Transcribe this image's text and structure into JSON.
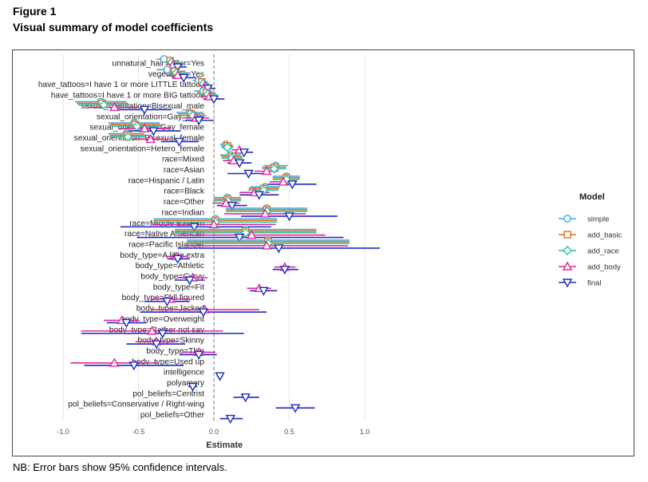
{
  "figure": {
    "number": "Figure 1",
    "title": "Visual summary of model coefficients"
  },
  "note": "NB: Error bars show 95% confidence intervals.",
  "colors": {
    "simple": "#3fa9dc",
    "add_basic": "#e36c19",
    "add_race": "#1ec5a0",
    "add_body": "#e6259a",
    "final": "#1c2bc4"
  },
  "chart_data": {
    "type": "scatter",
    "title": "",
    "xlabel": "Estimate",
    "ylabel": "",
    "xlim": [
      -1.0,
      1.0
    ],
    "xticks": [
      "-1.0",
      "-0.5",
      "0.0",
      "0.5",
      "1.0"
    ],
    "xtick_values": [
      -1.0,
      -0.5,
      0.0,
      0.5,
      1.0
    ],
    "grid": true,
    "reference_line": 0,
    "legend": {
      "title": "Model",
      "position": "right"
    },
    "series_names": [
      "simple",
      "add_basic",
      "add_race",
      "add_body",
      "final"
    ],
    "terms": [
      {
        "label": "unnatural_hair_color=Yes",
        "est": {
          "simple": [
            -0.33,
            -0.38,
            -0.28
          ],
          "add_basic": [
            -0.29,
            -0.34,
            -0.24
          ],
          "add_race": [
            -0.28,
            -0.33,
            -0.23
          ],
          "add_body": [
            -0.27,
            -0.32,
            -0.22
          ],
          "final": [
            -0.24,
            -0.29,
            -0.18
          ]
        }
      },
      {
        "label": "vegetarian=Yes",
        "est": {
          "simple": [
            -0.31,
            -0.38,
            -0.24
          ],
          "add_basic": [
            -0.26,
            -0.33,
            -0.19
          ],
          "add_race": [
            -0.25,
            -0.32,
            -0.18
          ],
          "add_body": [
            -0.24,
            -0.31,
            -0.17
          ],
          "final": [
            -0.2,
            -0.28,
            -0.12
          ]
        }
      },
      {
        "label": "have_tattoos=I have 1 or more LITTLE tattoos",
        "est": {
          "simple": [
            -0.1,
            -0.14,
            -0.06
          ],
          "add_basic": [
            -0.08,
            -0.12,
            -0.04
          ],
          "add_race": [
            -0.07,
            -0.11,
            -0.03
          ],
          "add_body": [
            -0.06,
            -0.1,
            -0.02
          ],
          "final": [
            -0.04,
            -0.09,
            0.01
          ]
        }
      },
      {
        "label": "have_tattoos=I have 1 or more BIG tattoos",
        "est": {
          "simple": [
            -0.07,
            -0.13,
            -0.01
          ],
          "add_basic": [
            -0.05,
            -0.11,
            0.01
          ],
          "add_race": [
            -0.04,
            -0.1,
            0.02
          ],
          "add_body": [
            -0.03,
            -0.09,
            0.03
          ],
          "final": [
            0.0,
            -0.07,
            0.07
          ]
        }
      },
      {
        "label": "sexual_orientation=Bisexual_male",
        "est": {
          "simple": [
            -0.75,
            -0.92,
            -0.58
          ],
          "add_basic": [
            -0.74,
            -0.91,
            -0.57
          ],
          "add_race": [
            -0.73,
            -0.9,
            -0.56
          ],
          "add_body": [
            -0.66,
            -0.84,
            -0.5
          ],
          "final": [
            -0.46,
            -0.64,
            -0.28
          ]
        }
      },
      {
        "label": "sexual_orientation=Gay_male",
        "est": {
          "simple": [
            -0.16,
            -0.25,
            -0.07
          ],
          "add_basic": [
            -0.15,
            -0.24,
            -0.06
          ],
          "add_race": [
            -0.14,
            -0.23,
            -0.05
          ],
          "add_body": [
            -0.12,
            -0.21,
            -0.03
          ],
          "final": [
            -0.1,
            -0.19,
            0.0
          ]
        }
      },
      {
        "label": "sexual_orientation=Gay_female",
        "est": {
          "simple": [
            -0.53,
            -0.7,
            -0.36
          ],
          "add_basic": [
            -0.52,
            -0.69,
            -0.35
          ],
          "add_race": [
            -0.51,
            -0.68,
            -0.34
          ],
          "add_body": [
            -0.46,
            -0.63,
            -0.29
          ],
          "final": [
            -0.4,
            -0.57,
            -0.22
          ]
        }
      },
      {
        "label": "sexual_orientation=Bisexual_female",
        "est": {
          "simple": [
            -0.58,
            -0.7,
            -0.46
          ],
          "add_basic": [
            -0.57,
            -0.69,
            -0.45
          ],
          "add_race": [
            -0.57,
            -0.69,
            -0.45
          ],
          "add_body": [
            -0.42,
            -0.54,
            -0.3
          ],
          "final": [
            -0.23,
            -0.35,
            -0.1
          ]
        }
      },
      {
        "label": "sexual_orientation=Hetero_female",
        "est": {
          "simple": [
            0.08,
            0.04,
            0.12
          ],
          "add_basic": [
            0.09,
            0.05,
            0.13
          ],
          "add_race": [
            0.09,
            0.05,
            0.13
          ],
          "add_body": [
            0.17,
            0.12,
            0.22
          ],
          "final": [
            0.2,
            0.14,
            0.26
          ]
        }
      },
      {
        "label": "race=Mixed",
        "est": {
          "simple": [
            0.11,
            0.04,
            0.18
          ],
          "add_basic": [
            0.12,
            0.05,
            0.19
          ],
          "add_race": [
            0.12,
            0.05,
            0.19
          ],
          "add_body": [
            0.13,
            0.06,
            0.2
          ],
          "final": [
            0.17,
            0.09,
            0.25
          ]
        }
      },
      {
        "label": "race=Asian",
        "est": {
          "simple": [
            0.41,
            0.33,
            0.49
          ],
          "add_basic": [
            0.4,
            0.32,
            0.48
          ],
          "add_race": [
            0.4,
            0.32,
            0.48
          ],
          "add_body": [
            0.35,
            0.27,
            0.43
          ],
          "final": [
            0.23,
            0.09,
            0.37
          ]
        }
      },
      {
        "label": "race=Hispanic / Latin",
        "est": {
          "simple": [
            0.48,
            0.39,
            0.57
          ],
          "add_basic": [
            0.48,
            0.39,
            0.57
          ],
          "add_race": [
            0.48,
            0.39,
            0.57
          ],
          "add_body": [
            0.46,
            0.37,
            0.55
          ],
          "final": [
            0.52,
            0.36,
            0.68
          ]
        }
      },
      {
        "label": "race=Black",
        "est": {
          "simple": [
            0.34,
            0.24,
            0.44
          ],
          "add_basic": [
            0.33,
            0.23,
            0.43
          ],
          "add_race": [
            0.33,
            0.23,
            0.43
          ],
          "add_body": [
            0.27,
            0.17,
            0.37
          ],
          "final": [
            0.3,
            0.17,
            0.43
          ]
        }
      },
      {
        "label": "race=Other",
        "est": {
          "simple": [
            0.09,
            0.0,
            0.18
          ],
          "add_basic": [
            0.09,
            0.0,
            0.18
          ],
          "add_race": [
            0.09,
            0.0,
            0.18
          ],
          "add_body": [
            0.08,
            -0.01,
            0.17
          ],
          "final": [
            0.12,
            0.02,
            0.22
          ]
        }
      },
      {
        "label": "race=Indian",
        "est": {
          "simple": [
            0.35,
            0.08,
            0.62
          ],
          "add_basic": [
            0.35,
            0.08,
            0.62
          ],
          "add_race": [
            0.35,
            0.08,
            0.62
          ],
          "add_body": [
            0.34,
            0.07,
            0.61
          ],
          "final": [
            0.5,
            0.18,
            0.82
          ]
        }
      },
      {
        "label": "race=Middle Eastern",
        "est": {
          "simple": [
            0.01,
            -0.4,
            0.42
          ],
          "add_basic": [
            0.01,
            -0.4,
            0.42
          ],
          "add_race": [
            0.01,
            -0.4,
            0.42
          ],
          "add_body": [
            0.0,
            -0.41,
            0.41
          ],
          "final": [
            -0.13,
            -0.62,
            0.38
          ]
        }
      },
      {
        "label": "race=Native American",
        "est": {
          "simple": [
            0.21,
            -0.26,
            0.68
          ],
          "add_basic": [
            0.21,
            -0.26,
            0.68
          ],
          "add_race": [
            0.21,
            -0.26,
            0.68
          ],
          "add_body": [
            0.25,
            -0.24,
            0.74
          ],
          "final": [
            0.17,
            -0.51,
            0.86
          ]
        }
      },
      {
        "label": "race=Pacific Islander",
        "est": {
          "simple": [
            0.36,
            -0.18,
            0.9
          ],
          "add_basic": [
            0.36,
            -0.18,
            0.9
          ],
          "add_race": [
            0.36,
            -0.18,
            0.9
          ],
          "add_body": [
            0.35,
            -0.19,
            0.89
          ],
          "final": [
            0.43,
            -0.24,
            1.1
          ]
        }
      },
      {
        "label": "body_type=A little extra",
        "est": {
          "add_body": [
            -0.25,
            -0.32,
            -0.18
          ],
          "final": [
            -0.24,
            -0.31,
            -0.16
          ]
        }
      },
      {
        "label": "body_type=Athletic",
        "est": {
          "add_body": [
            0.47,
            0.4,
            0.54
          ],
          "final": [
            0.47,
            0.39,
            0.56
          ]
        }
      },
      {
        "label": "body_type=Curvy",
        "est": {
          "add_body": [
            -0.14,
            -0.24,
            -0.04
          ],
          "final": [
            -0.16,
            -0.26,
            -0.06
          ]
        }
      },
      {
        "label": "body_type=Fit",
        "est": {
          "add_body": [
            0.3,
            0.22,
            0.38
          ],
          "final": [
            0.33,
            0.24,
            0.42
          ]
        }
      },
      {
        "label": "body_type=Full figured",
        "est": {
          "add_body": [
            -0.29,
            -0.42,
            -0.16
          ],
          "final": [
            -0.31,
            -0.46,
            -0.16
          ]
        }
      },
      {
        "label": "body_type=Jacked",
        "est": {
          "add_body": [
            -0.06,
            -0.42,
            0.3
          ],
          "final": [
            -0.07,
            -0.49,
            0.35
          ]
        }
      },
      {
        "label": "body_type=Overweight",
        "est": {
          "add_body": [
            -0.61,
            -0.73,
            -0.49
          ],
          "final": [
            -0.58,
            -0.71,
            -0.45
          ]
        }
      },
      {
        "label": "body_type=Rather not say",
        "est": {
          "add_body": [
            -0.41,
            -0.88,
            0.06
          ],
          "final": [
            -0.34,
            -0.88,
            0.2
          ]
        }
      },
      {
        "label": "body_type=Skinny",
        "est": {
          "add_body": [
            -0.38,
            -0.52,
            -0.24
          ],
          "final": [
            -0.38,
            -0.58,
            -0.19
          ]
        }
      },
      {
        "label": "body_type=Thin",
        "est": {
          "add_body": [
            -0.1,
            -0.21,
            0.01
          ],
          "final": [
            -0.1,
            -0.23,
            0.02
          ]
        }
      },
      {
        "label": "body_type=Used up",
        "est": {
          "add_body": [
            -0.66,
            -0.95,
            -0.37
          ],
          "final": [
            -0.53,
            -0.86,
            -0.2
          ]
        }
      },
      {
        "label": "intelligence",
        "est": {
          "final": [
            0.04,
            0.02,
            0.06
          ]
        }
      },
      {
        "label": "polyamory",
        "est": {
          "final": [
            -0.14,
            -0.17,
            -0.11
          ]
        }
      },
      {
        "label": "pol_beliefs=Centrist",
        "est": {
          "final": [
            0.21,
            0.13,
            0.3
          ]
        }
      },
      {
        "label": "pol_beliefs=Conservative / Right-wing",
        "est": {
          "final": [
            0.54,
            0.41,
            0.67
          ]
        }
      },
      {
        "label": "pol_beliefs=Other",
        "est": {
          "final": [
            0.11,
            0.04,
            0.19
          ]
        }
      }
    ]
  }
}
